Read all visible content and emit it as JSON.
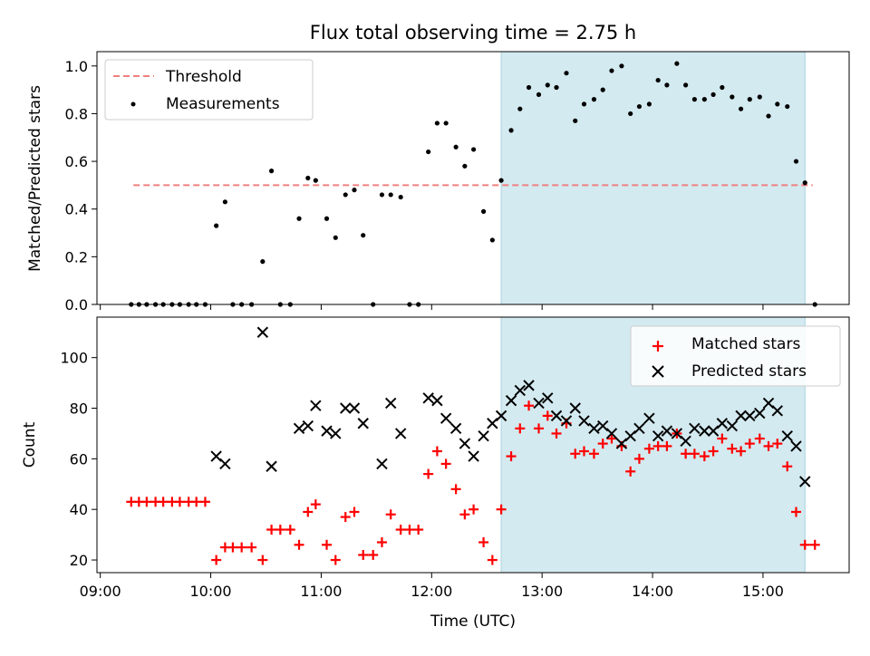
{
  "chart_data": [
    {
      "type": "scatter",
      "title": "Flux total observing time = 2.75 h",
      "xlabel": "",
      "ylabel": "Matched/Predicted stars",
      "xlim_hours": [
        8.97,
        15.78
      ],
      "ylim": [
        0,
        1.06
      ],
      "ytick_labels": [
        "0.0",
        "0.2",
        "0.4",
        "0.6",
        "0.8",
        "1.0"
      ],
      "ytick_values": [
        0,
        0.2,
        0.4,
        0.6,
        0.8,
        1.0
      ],
      "xtick_values": [
        9,
        10,
        11,
        12,
        13,
        14,
        15
      ],
      "shaded_span": [
        12.63,
        15.38
      ],
      "shaded_color": "#d3eaf0",
      "threshold": {
        "name": "Threshold",
        "value": 0.5,
        "x": [
          9.3,
          15.45
        ],
        "color": "#f08080",
        "style": "dashed"
      },
      "measurements": {
        "name": "Measurements",
        "color": "#000000",
        "x": [
          9.28,
          9.35,
          9.42,
          9.5,
          9.57,
          9.65,
          9.72,
          9.8,
          9.87,
          9.95,
          10.05,
          10.13,
          10.2,
          10.28,
          10.37,
          10.47,
          10.55,
          10.63,
          10.72,
          10.8,
          10.88,
          10.95,
          11.05,
          11.13,
          11.22,
          11.3,
          11.38,
          11.47,
          11.55,
          11.63,
          11.72,
          11.8,
          11.88,
          11.97,
          12.05,
          12.13,
          12.22,
          12.3,
          12.38,
          12.47,
          12.55,
          12.63,
          12.72,
          12.8,
          12.88,
          12.97,
          13.05,
          13.13,
          13.22,
          13.3,
          13.38,
          13.47,
          13.55,
          13.63,
          13.72,
          13.8,
          13.88,
          13.97,
          14.05,
          14.13,
          14.22,
          14.3,
          14.38,
          14.47,
          14.55,
          14.63,
          14.72,
          14.8,
          14.88,
          14.97,
          15.05,
          15.13,
          15.22,
          15.3,
          15.38,
          15.47
        ],
        "y": [
          0,
          0,
          0,
          0,
          0,
          0,
          0,
          0,
          0,
          0,
          0.33,
          0.43,
          0,
          0,
          0,
          0.18,
          0.56,
          0,
          0,
          0.36,
          0.53,
          0.52,
          0.36,
          0.28,
          0.46,
          0.48,
          0.29,
          0,
          0.46,
          0.46,
          0.45,
          0,
          0,
          0.64,
          0.76,
          0.76,
          0.66,
          0.58,
          0.65,
          0.39,
          0.27,
          0.52,
          0.73,
          0.82,
          0.91,
          0.88,
          0.92,
          0.91,
          0.97,
          0.77,
          0.84,
          0.86,
          0.9,
          0.98,
          1.0,
          0.8,
          0.83,
          0.84,
          0.94,
          0.92,
          1.01,
          0.92,
          0.86,
          0.86,
          0.88,
          0.91,
          0.87,
          0.82,
          0.86,
          0.87,
          0.79,
          0.84,
          0.83,
          0.6,
          0.51,
          0
        ]
      },
      "legend": {
        "placement": "upper-left",
        "entries": [
          "Threshold",
          "Measurements"
        ]
      }
    },
    {
      "type": "scatter",
      "title": "",
      "xlabel": "Time (UTC)",
      "ylabel": "Count",
      "xlim_hours": [
        8.97,
        15.78
      ],
      "ylim": [
        15,
        116
      ],
      "ytick_labels": [
        "20",
        "40",
        "60",
        "80",
        "100"
      ],
      "ytick_values": [
        20,
        40,
        60,
        80,
        100
      ],
      "xtick_labels": [
        "09:00",
        "10:00",
        "11:00",
        "12:00",
        "13:00",
        "14:00",
        "15:00"
      ],
      "xtick_values": [
        9,
        10,
        11,
        12,
        13,
        14,
        15
      ],
      "shaded_span": [
        12.63,
        15.38
      ],
      "shaded_color": "#d3eaf0",
      "series": [
        {
          "name": "Matched stars",
          "marker": "+",
          "color": "#ff0000",
          "x": [
            9.28,
            9.35,
            9.42,
            9.5,
            9.57,
            9.65,
            9.72,
            9.8,
            9.87,
            9.95,
            10.05,
            10.13,
            10.2,
            10.28,
            10.37,
            10.47,
            10.55,
            10.63,
            10.72,
            10.8,
            10.88,
            10.95,
            11.05,
            11.13,
            11.22,
            11.3,
            11.38,
            11.47,
            11.55,
            11.63,
            11.72,
            11.8,
            11.88,
            11.97,
            12.05,
            12.13,
            12.22,
            12.3,
            12.38,
            12.47,
            12.55,
            12.63,
            12.72,
            12.8,
            12.88,
            12.97,
            13.05,
            13.13,
            13.22,
            13.3,
            13.38,
            13.47,
            13.55,
            13.63,
            13.72,
            13.8,
            13.88,
            13.97,
            14.05,
            14.13,
            14.22,
            14.3,
            14.38,
            14.47,
            14.55,
            14.63,
            14.72,
            14.8,
            14.88,
            14.97,
            15.05,
            15.13,
            15.22,
            15.3,
            15.38,
            15.47
          ],
          "y": [
            43,
            43,
            43,
            43,
            43,
            43,
            43,
            43,
            43,
            43,
            20,
            25,
            25,
            25,
            25,
            20,
            32,
            32,
            32,
            26,
            39,
            42,
            26,
            20,
            37,
            39,
            22,
            22,
            27,
            38,
            32,
            32,
            32,
            54,
            63,
            58,
            48,
            38,
            40,
            27,
            20,
            40,
            61,
            72,
            81,
            72,
            77,
            70,
            74,
            62,
            63,
            62,
            66,
            68,
            65,
            55,
            60,
            64,
            65,
            65,
            70,
            62,
            62,
            61,
            63,
            68,
            64,
            63,
            66,
            68,
            65,
            66,
            57,
            39,
            26,
            26
          ]
        },
        {
          "name": "Predicted stars",
          "marker": "x",
          "color": "#000000",
          "x": [
            10.05,
            10.13,
            10.47,
            10.55,
            10.8,
            10.88,
            10.95,
            11.05,
            11.13,
            11.22,
            11.3,
            11.38,
            11.55,
            11.63,
            11.72,
            11.97,
            12.05,
            12.13,
            12.22,
            12.3,
            12.38,
            12.47,
            12.55,
            12.63,
            12.72,
            12.8,
            12.88,
            12.97,
            13.05,
            13.13,
            13.22,
            13.3,
            13.38,
            13.47,
            13.55,
            13.63,
            13.72,
            13.8,
            13.88,
            13.97,
            14.05,
            14.13,
            14.22,
            14.3,
            14.38,
            14.47,
            14.55,
            14.63,
            14.72,
            14.8,
            14.88,
            14.97,
            15.05,
            15.13,
            15.22,
            15.3,
            15.38
          ],
          "y": [
            61,
            58,
            110,
            57,
            72,
            73,
            81,
            71,
            70,
            80,
            80,
            74,
            58,
            82,
            70,
            84,
            83,
            76,
            72,
            66,
            61,
            69,
            74,
            77,
            83,
            87,
            89,
            82,
            84,
            77,
            75,
            80,
            75,
            72,
            73,
            70,
            66,
            69,
            72,
            76,
            69,
            71,
            70,
            67,
            72,
            71,
            71,
            74,
            73,
            77,
            77,
            78,
            82,
            79,
            69,
            65,
            51
          ]
        }
      ],
      "legend": {
        "placement": "upper-right",
        "entries": [
          "Matched stars",
          "Predicted stars"
        ]
      }
    }
  ]
}
